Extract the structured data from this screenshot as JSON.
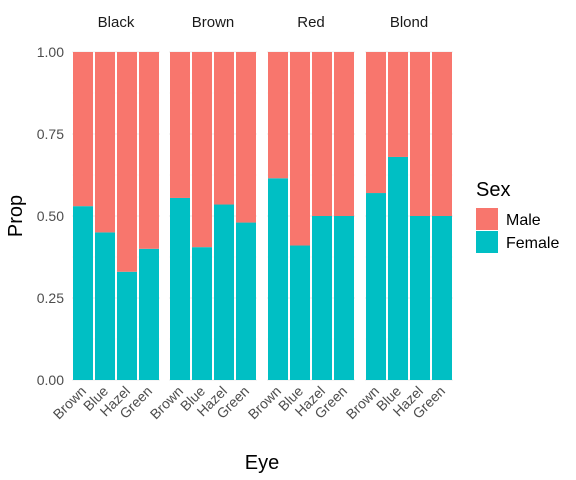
{
  "chart_data": {
    "type": "bar",
    "stacked": true,
    "facet_by": "Hair",
    "facets": [
      "Black",
      "Brown",
      "Red",
      "Blond"
    ],
    "categories": [
      "Brown",
      "Blue",
      "Hazel",
      "Green"
    ],
    "series": [
      {
        "name": "Female",
        "color": "#00BFC4",
        "values": {
          "Black": [
            0.53,
            0.45,
            0.33,
            0.4
          ],
          "Brown": [
            0.555,
            0.405,
            0.535,
            0.48
          ],
          "Red": [
            0.615,
            0.41,
            0.5,
            0.5
          ],
          "Blond": [
            0.57,
            0.68,
            0.5,
            0.5
          ]
        }
      },
      {
        "name": "Male",
        "color": "#F8766D",
        "values": {
          "Black": [
            0.47,
            0.55,
            0.67,
            0.6
          ],
          "Brown": [
            0.445,
            0.595,
            0.465,
            0.52
          ],
          "Red": [
            0.385,
            0.59,
            0.5,
            0.5
          ],
          "Blond": [
            0.43,
            0.32,
            0.5,
            0.5
          ]
        }
      }
    ],
    "xlabel": "Eye",
    "ylabel": "Prop",
    "ylim": [
      0,
      1
    ],
    "yticks": [
      "0.00",
      "0.25",
      "0.50",
      "0.75",
      "1.00"
    ],
    "grid": true,
    "legend": {
      "title": "Sex",
      "entries": [
        {
          "label": "Male",
          "color": "#F8766D"
        },
        {
          "label": "Female",
          "color": "#00BFC4"
        }
      ],
      "position": "right"
    }
  }
}
